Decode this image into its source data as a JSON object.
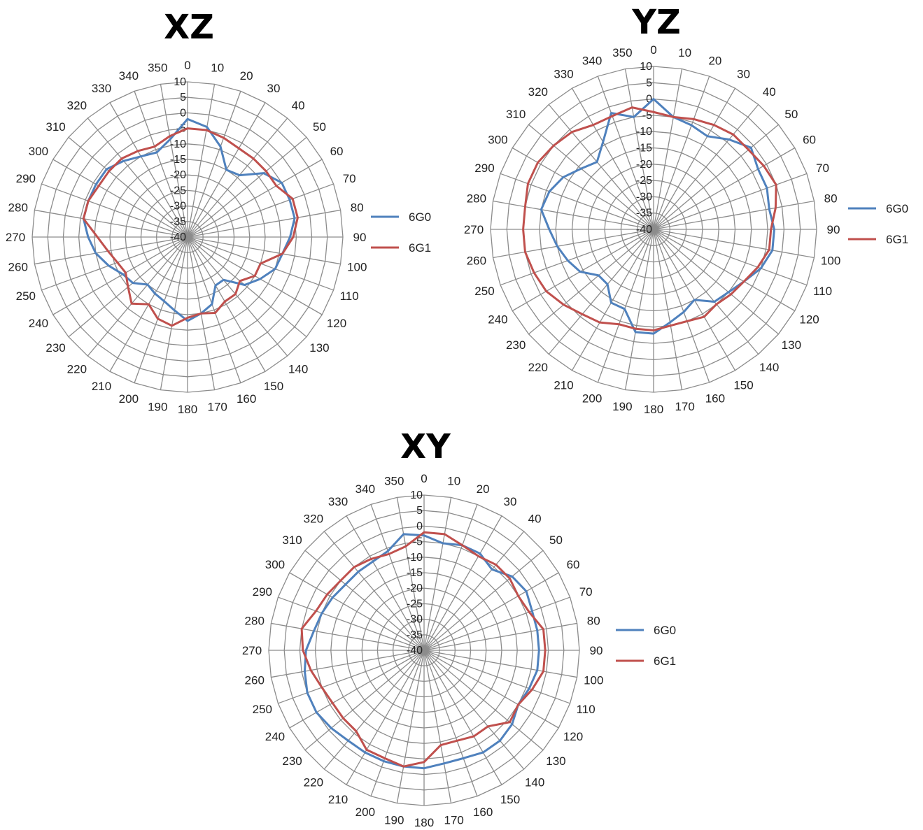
{
  "chart_data": [
    {
      "type": "radar",
      "title": "XZ",
      "angles": [
        0,
        10,
        20,
        30,
        40,
        50,
        60,
        70,
        80,
        90,
        100,
        110,
        120,
        130,
        140,
        150,
        160,
        170,
        180,
        190,
        200,
        210,
        220,
        230,
        240,
        250,
        260,
        270,
        280,
        290,
        300,
        310,
        320,
        330,
        340,
        350
      ],
      "rlim": [
        -40,
        10
      ],
      "radial_ticks": [
        10,
        5,
        0,
        -5,
        -10,
        -15,
        -20,
        -25,
        -30,
        -35,
        -40
      ],
      "legend_position": "right",
      "series": [
        {
          "name": "6G0",
          "color": "#4f81bd",
          "values": [
            -2,
            -4,
            -9,
            -15,
            -14,
            -8,
            -5,
            -5,
            -5,
            -7,
            -9,
            -10,
            -13,
            -16,
            -22,
            -22,
            -17,
            -15,
            -13,
            -16,
            -18,
            -19,
            -20,
            -17,
            -16,
            -13,
            -10,
            -8,
            -6,
            -6,
            -6,
            -6,
            -8,
            -10,
            -11,
            -8
          ]
        },
        {
          "name": "6G1",
          "color": "#c0504d",
          "values": [
            -5,
            -5,
            -6,
            -7,
            -7,
            -7,
            -7,
            -4,
            -4,
            -6,
            -9,
            -15,
            -15,
            -18,
            -16,
            -16,
            -14,
            -15,
            -14,
            -11,
            -12,
            -15,
            -12,
            -15,
            -17,
            -16,
            -14,
            -11,
            -6,
            -6,
            -7,
            -7,
            -7,
            -8,
            -9,
            -7
          ]
        }
      ]
    },
    {
      "type": "radar",
      "title": "YZ",
      "angles": [
        0,
        10,
        20,
        30,
        40,
        50,
        60,
        70,
        80,
        90,
        100,
        110,
        120,
        130,
        140,
        150,
        160,
        170,
        180,
        190,
        200,
        210,
        220,
        230,
        240,
        250,
        260,
        270,
        280,
        290,
        300,
        310,
        320,
        330,
        340,
        350
      ],
      "rlim": [
        -40,
        10
      ],
      "radial_ticks": [
        10,
        5,
        0,
        -5,
        -10,
        -15,
        -20,
        -25,
        -30,
        -35,
        -40
      ],
      "legend_position": "right",
      "series": [
        {
          "name": "6G0",
          "color": "#4f81bd",
          "values": [
            0,
            -5,
            -6,
            -7,
            -4,
            -1,
            -3,
            -3,
            -4,
            -3,
            -3,
            -5,
            -8,
            -10,
            -11,
            -15,
            -13,
            -11,
            -8,
            -8,
            -14,
            -14,
            -18,
            -18,
            -14,
            -12,
            -10,
            -8,
            -5,
            -6,
            -8,
            -11,
            -13,
            -9,
            -2,
            -5
          ]
        },
        {
          "name": "6G1",
          "color": "#c0504d",
          "values": [
            -4,
            -5,
            -4,
            -3,
            -2,
            -2,
            -1,
            0,
            -2,
            -4,
            -4,
            -6,
            -8,
            -9,
            -10,
            -9,
            -10,
            -10,
            -9,
            -9,
            -9,
            -7,
            -6,
            -4,
            -2,
            -1,
            0,
            0,
            0,
            1,
            1,
            0,
            -1,
            -3,
            -3,
            -2
          ]
        }
      ]
    },
    {
      "type": "radar",
      "title": "XY",
      "angles": [
        0,
        10,
        20,
        30,
        40,
        50,
        60,
        70,
        80,
        90,
        100,
        110,
        120,
        130,
        140,
        150,
        160,
        170,
        180,
        190,
        200,
        210,
        220,
        230,
        240,
        250,
        260,
        270,
        280,
        290,
        300,
        310,
        320,
        330,
        340,
        350
      ],
      "rlim": [
        -40,
        10
      ],
      "radial_ticks": [
        10,
        5,
        0,
        -5,
        -10,
        -15,
        -20,
        -25,
        -30,
        -35,
        -40
      ],
      "legend_position": "right",
      "series": [
        {
          "name": "6G0",
          "color": "#4f81bd",
          "values": [
            -3,
            -5,
            -4,
            -4,
            -6,
            -3,
            -2,
            -3,
            -3,
            -3,
            -3,
            -4,
            -5,
            -3,
            -2,
            -2,
            -3,
            -3,
            -2,
            -2,
            -2,
            -2,
            -2,
            -1,
            0,
            0,
            -1,
            -2,
            -4,
            -5,
            -6,
            -7,
            -7,
            -7,
            -6,
            -2
          ]
        },
        {
          "name": "6G1",
          "color": "#c0504d",
          "values": [
            -2,
            -2,
            -4,
            -5,
            -4,
            -4,
            -5,
            -4,
            -1,
            -1,
            -1,
            -3,
            -5,
            -4,
            -8,
            -8,
            -9,
            -9,
            -4,
            -2,
            -3,
            -3,
            -6,
            -6,
            -6,
            -5,
            -3,
            -1,
            0,
            -3,
            -4,
            -5,
            -5,
            -6,
            -7,
            -6
          ]
        }
      ]
    }
  ]
}
